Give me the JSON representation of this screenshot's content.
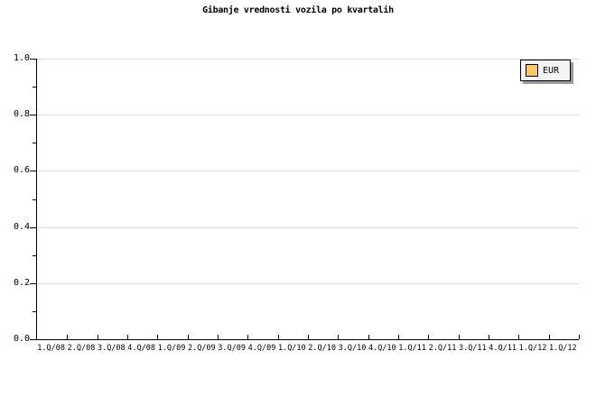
{
  "chart_data": {
    "type": "line",
    "title": "Gibanje vrednosti vozila po kvartalih",
    "x_categories": [
      "1.Q/08",
      "2.Q/08",
      "3.Q/08",
      "4.Q/08",
      "1.Q/09",
      "2.Q/09",
      "3.Q/09",
      "4.Q/09",
      "1.Q/10",
      "2.Q/10",
      "3.Q/10",
      "4.Q/10",
      "1.Q/11",
      "2.Q/11",
      "3.Q/11",
      "4.Q/11",
      "1.Q/12",
      "1.Q/12"
    ],
    "xlabel": "",
    "ylabel": "",
    "ylim": [
      0.0,
      1.0
    ],
    "y_major_step": 0.2,
    "y_minor_step": 0.1,
    "y_tick_labels_top_to_bottom": [
      "1.0",
      "0.8",
      "0.6",
      "0.4",
      "0.2",
      "0.0"
    ],
    "grid": "horizontal-major-on",
    "legend": {
      "position": "top-right",
      "entries": [
        {
          "label": "EUR",
          "swatch_color": "#fbc866"
        }
      ]
    },
    "series": [
      {
        "name": "EUR",
        "color": "#fbc866",
        "values": []
      }
    ]
  },
  "colors": {
    "background": "#ffffff",
    "axis": "#000000",
    "gridline": "#dcdcdc",
    "title_text": "#000000",
    "tick_text": "#000000",
    "legend_background": "#f4f4f4",
    "legend_border": "#000000",
    "legend_shadow": "#999999",
    "series_eur": "#fbc866"
  }
}
